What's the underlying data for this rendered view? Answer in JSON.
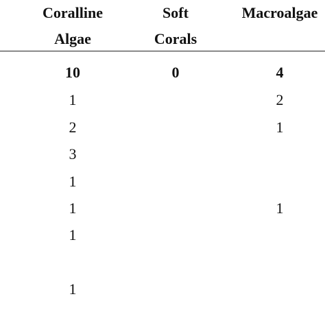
{
  "table": {
    "headers": [
      {
        "line1": "Coralline",
        "line2": "Algae"
      },
      {
        "line1": "Soft",
        "line2": "Corals"
      },
      {
        "line1": "Macroalgae",
        "line2": ""
      }
    ],
    "total_row": [
      "10",
      "0",
      "4"
    ],
    "rows": [
      [
        "1",
        "",
        "2"
      ],
      [
        "2",
        "",
        "1"
      ],
      [
        "3",
        "",
        ""
      ],
      [
        "1",
        "",
        ""
      ],
      [
        "1",
        "",
        "1"
      ],
      [
        "1",
        "",
        ""
      ],
      [
        "",
        "",
        ""
      ],
      [
        "1",
        "",
        ""
      ]
    ]
  }
}
